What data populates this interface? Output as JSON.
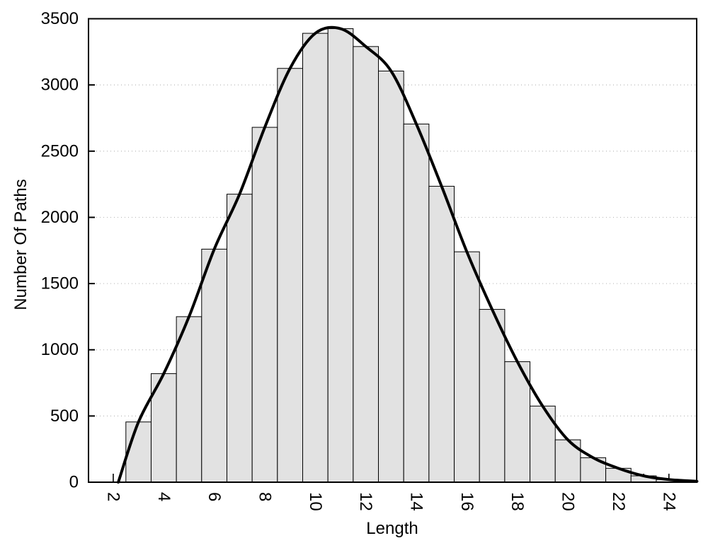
{
  "chart_data": {
    "type": "bar",
    "title": "",
    "xlabel": "Length",
    "ylabel": "Number Of Paths",
    "xlim": [
      1.02,
      25.1
    ],
    "ylim": [
      0,
      3500
    ],
    "grid": "horizontal-dotted",
    "legend": "none",
    "bar_width": 1,
    "categories": [
      3,
      4,
      5,
      6,
      7,
      8,
      9,
      10,
      11,
      12,
      13,
      14,
      15,
      16,
      17,
      18,
      19,
      20,
      21,
      22,
      23,
      24
    ],
    "values": [
      455,
      820,
      1250,
      1760,
      2175,
      2680,
      3125,
      3390,
      3425,
      3290,
      3105,
      2705,
      2235,
      1740,
      1305,
      910,
      575,
      320,
      185,
      105,
      48,
      20
    ],
    "yticks": [
      0,
      500,
      1000,
      1500,
      2000,
      2500,
      3000,
      3500
    ],
    "xticks_labeled": [
      2,
      4,
      6,
      8,
      10,
      12,
      14,
      16,
      18,
      20,
      22,
      24
    ],
    "inner_xticks": [
      2,
      3,
      4,
      5,
      6,
      7,
      8,
      9,
      10,
      11,
      12,
      13,
      14,
      15,
      16,
      17,
      18,
      19,
      20,
      21,
      22,
      23,
      24
    ],
    "curve": {
      "type": "line",
      "name": "smooth-fit-curve",
      "points": [
        [
          2.2,
          0
        ],
        [
          3,
          455
        ],
        [
          4,
          820
        ],
        [
          5,
          1250
        ],
        [
          6,
          1760
        ],
        [
          7,
          2175
        ],
        [
          8,
          2680
        ],
        [
          9,
          3125
        ],
        [
          10,
          3390
        ],
        [
          11,
          3425
        ],
        [
          12,
          3290
        ],
        [
          13,
          3105
        ],
        [
          14,
          2705
        ],
        [
          15,
          2235
        ],
        [
          16,
          1740
        ],
        [
          17,
          1305
        ],
        [
          18,
          910
        ],
        [
          19,
          575
        ],
        [
          20,
          320
        ],
        [
          21,
          185
        ],
        [
          22,
          105
        ],
        [
          23,
          48
        ],
        [
          24,
          20
        ],
        [
          25,
          8
        ],
        [
          25.1,
          7
        ]
      ]
    },
    "colors": {
      "background": "#ffffff",
      "bar_fill": "#e2e2e2",
      "bar_stroke": "#000000",
      "curve": "#000000",
      "grid": "#b9b9b9",
      "border": "#000000",
      "text": "#000000"
    }
  }
}
